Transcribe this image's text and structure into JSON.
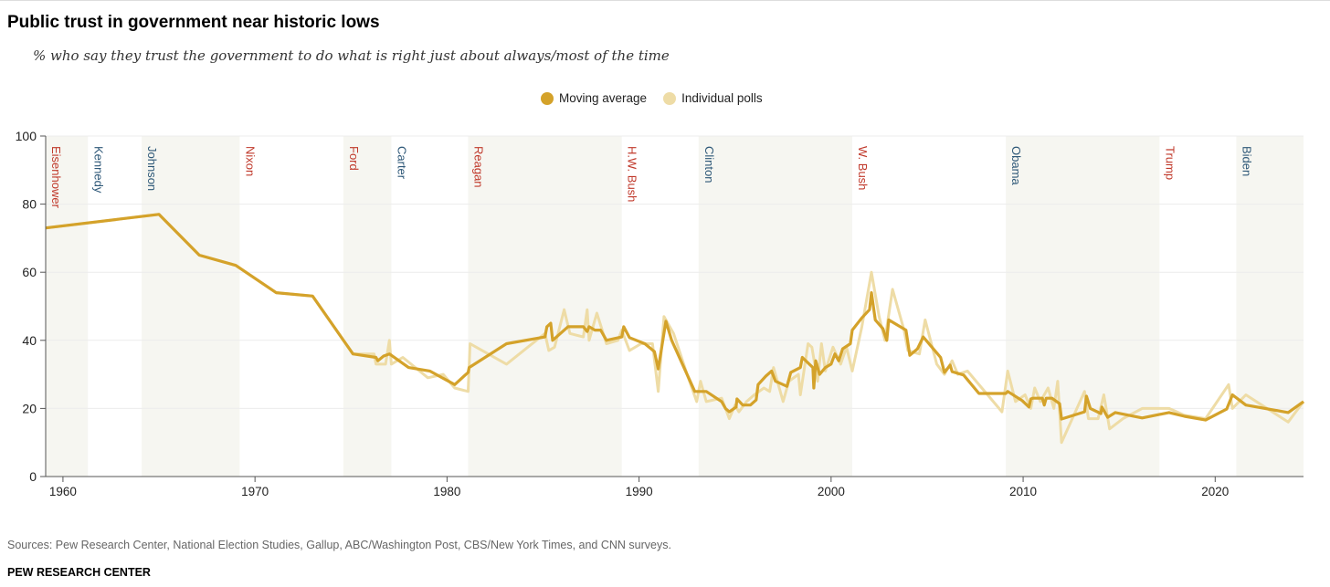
{
  "header": {
    "title": "Public trust in government near historic lows",
    "subtitle": "% who say they trust the government to do what is right just about always/most of the time"
  },
  "footer": {
    "sources": "Sources: Pew Research Center, National Election Studies, Gallup, ABC/Washington Post, CBS/New York Times, and CNN surveys.",
    "brand": "PEW RESEARCH CENTER"
  },
  "colors": {
    "average": "#D4A22A",
    "polls": "#EEDCA6",
    "band": "#F6F6F1",
    "republican": "#C0392B",
    "democrat": "#2E5878"
  },
  "chart_data": {
    "type": "line",
    "title": "Public trust in government near historic lows",
    "xlabel": "",
    "ylabel": "",
    "xlim": [
      1959.1,
      2024.6
    ],
    "ylim": [
      0,
      100
    ],
    "xticks": [
      1960,
      1970,
      1980,
      1990,
      2000,
      2010,
      2020
    ],
    "yticks": [
      0,
      20,
      40,
      60,
      80,
      100
    ],
    "grid": true,
    "legend_position": "top-center",
    "legend": [
      "Moving average",
      "Individual polls"
    ],
    "presidents": [
      {
        "name": "Eisenhower",
        "start": 1959.1,
        "party": "R"
      },
      {
        "name": "Kennedy",
        "start": 1961.3,
        "party": "D"
      },
      {
        "name": "Johnson",
        "start": 1964.1,
        "party": "D"
      },
      {
        "name": "Nixon",
        "start": 1969.2,
        "party": "R"
      },
      {
        "name": "Ford",
        "start": 1974.6,
        "party": "R"
      },
      {
        "name": "Carter",
        "start": 1977.1,
        "party": "D"
      },
      {
        "name": "Reagan",
        "start": 1981.1,
        "party": "R"
      },
      {
        "name": "H.W. Bush",
        "start": 1989.1,
        "party": "R"
      },
      {
        "name": "Clinton",
        "start": 1993.1,
        "party": "D"
      },
      {
        "name": "W. Bush",
        "start": 2001.1,
        "party": "R"
      },
      {
        "name": "Obama",
        "start": 2009.1,
        "party": "D"
      },
      {
        "name": "Trump",
        "start": 2017.1,
        "party": "R"
      },
      {
        "name": "Biden",
        "start": 2021.1,
        "party": "D"
      }
    ],
    "series": [
      {
        "name": "Individual polls",
        "points": [
          [
            1959.1,
            73
          ],
          [
            1965.0,
            77
          ],
          [
            1967.1,
            65
          ],
          [
            1969.0,
            62
          ],
          [
            1971.1,
            54
          ],
          [
            1973.0,
            53
          ],
          [
            1975.1,
            36
          ],
          [
            1976.2,
            36
          ],
          [
            1976.3,
            33
          ],
          [
            1976.8,
            33
          ],
          [
            1977.0,
            40
          ],
          [
            1977.1,
            33
          ],
          [
            1977.7,
            35
          ],
          [
            1979.0,
            29
          ],
          [
            1979.8,
            30
          ],
          [
            1980.4,
            26
          ],
          [
            1981.1,
            25
          ],
          [
            1981.2,
            39
          ],
          [
            1983.1,
            33
          ],
          [
            1985.1,
            42
          ],
          [
            1985.3,
            37
          ],
          [
            1985.6,
            38
          ],
          [
            1986.1,
            49
          ],
          [
            1986.4,
            42
          ],
          [
            1987.1,
            41
          ],
          [
            1987.3,
            49
          ],
          [
            1987.4,
            40
          ],
          [
            1987.8,
            48
          ],
          [
            1988.3,
            39
          ],
          [
            1988.9,
            40
          ],
          [
            1989.1,
            43
          ],
          [
            1989.5,
            37
          ],
          [
            1990.1,
            39
          ],
          [
            1990.7,
            39
          ],
          [
            1991.0,
            25
          ],
          [
            1991.3,
            47
          ],
          [
            1991.8,
            42
          ],
          [
            1992.5,
            30
          ],
          [
            1993.0,
            22
          ],
          [
            1993.2,
            28
          ],
          [
            1993.5,
            22
          ],
          [
            1994.3,
            23
          ],
          [
            1994.7,
            17
          ],
          [
            1995.0,
            21
          ],
          [
            1995.2,
            19
          ],
          [
            1995.6,
            22
          ],
          [
            1996.0,
            24
          ],
          [
            1996.5,
            26
          ],
          [
            1996.8,
            25
          ],
          [
            1997.0,
            32
          ],
          [
            1997.5,
            22
          ],
          [
            1997.8,
            28
          ],
          [
            1998.3,
            30
          ],
          [
            1998.4,
            24
          ],
          [
            1998.8,
            39
          ],
          [
            1999.0,
            38
          ],
          [
            1999.3,
            28
          ],
          [
            1999.5,
            39
          ],
          [
            1999.7,
            31
          ],
          [
            2000.1,
            38
          ],
          [
            2000.5,
            33
          ],
          [
            2000.8,
            38
          ],
          [
            2001.1,
            31
          ],
          [
            2001.6,
            44
          ],
          [
            2002.1,
            60
          ],
          [
            2002.5,
            47
          ],
          [
            2002.8,
            40
          ],
          [
            2003.2,
            55
          ],
          [
            2003.8,
            43
          ],
          [
            2004.0,
            37
          ],
          [
            2004.6,
            36
          ],
          [
            2004.9,
            46
          ],
          [
            2005.5,
            33
          ],
          [
            2005.9,
            30
          ],
          [
            2006.3,
            34
          ],
          [
            2006.6,
            30
          ],
          [
            2007.1,
            31
          ],
          [
            2008.9,
            19
          ],
          [
            2009.2,
            31
          ],
          [
            2009.6,
            22
          ],
          [
            2010.1,
            24
          ],
          [
            2010.4,
            20
          ],
          [
            2010.6,
            26
          ],
          [
            2010.9,
            22
          ],
          [
            2011.3,
            26
          ],
          [
            2011.6,
            20
          ],
          [
            2011.8,
            28
          ],
          [
            2012.0,
            10
          ],
          [
            2013.2,
            25
          ],
          [
            2013.4,
            17
          ],
          [
            2013.9,
            17
          ],
          [
            2014.2,
            24
          ],
          [
            2014.5,
            14
          ],
          [
            2015.2,
            17
          ],
          [
            2016.2,
            20
          ],
          [
            2017.6,
            20
          ],
          [
            2018.4,
            18
          ],
          [
            2019.5,
            17
          ],
          [
            2020.7,
            27
          ],
          [
            2020.9,
            20
          ],
          [
            2021.6,
            24
          ],
          [
            2023.8,
            16
          ],
          [
            2024.6,
            22
          ]
        ]
      },
      {
        "name": "Moving average",
        "points": [
          [
            1959.1,
            73
          ],
          [
            1965.0,
            77
          ],
          [
            1967.1,
            65
          ],
          [
            1969.0,
            62
          ],
          [
            1971.1,
            54
          ],
          [
            1973.0,
            53
          ],
          [
            1975.1,
            36
          ],
          [
            1976.3,
            35
          ],
          [
            1976.4,
            34
          ],
          [
            1976.7,
            35.4
          ],
          [
            1977.0,
            36
          ],
          [
            1978.0,
            32
          ],
          [
            1979.1,
            31
          ],
          [
            1980.4,
            27
          ],
          [
            1981.1,
            30.6
          ],
          [
            1981.15,
            32
          ],
          [
            1983.1,
            39
          ],
          [
            1985.1,
            41
          ],
          [
            1985.2,
            44
          ],
          [
            1985.4,
            45
          ],
          [
            1985.5,
            40
          ],
          [
            1986.3,
            44
          ],
          [
            1987.1,
            44
          ],
          [
            1987.3,
            42.6
          ],
          [
            1987.4,
            44
          ],
          [
            1987.7,
            43
          ],
          [
            1988.0,
            43
          ],
          [
            1988.3,
            40
          ],
          [
            1989.1,
            41
          ],
          [
            1989.2,
            44
          ],
          [
            1989.5,
            40.8
          ],
          [
            1990.3,
            39
          ],
          [
            1990.8,
            36.7
          ],
          [
            1991.0,
            31.6
          ],
          [
            1991.4,
            45.6
          ],
          [
            1991.7,
            40
          ],
          [
            1992.9,
            25
          ],
          [
            1993.5,
            25
          ],
          [
            1994.3,
            22
          ],
          [
            1994.5,
            20
          ],
          [
            1994.7,
            19
          ],
          [
            1995.05,
            20.4
          ],
          [
            1995.1,
            22.8
          ],
          [
            1995.4,
            21
          ],
          [
            1995.8,
            21
          ],
          [
            1996.1,
            22.5
          ],
          [
            1996.2,
            27
          ],
          [
            1996.6,
            29.5
          ],
          [
            1996.9,
            31
          ],
          [
            1997.1,
            28
          ],
          [
            1997.7,
            26.5
          ],
          [
            1997.9,
            30.6
          ],
          [
            1998.4,
            32
          ],
          [
            1998.5,
            35
          ],
          [
            1999.05,
            32
          ],
          [
            1999.1,
            26
          ],
          [
            1999.2,
            34
          ],
          [
            1999.4,
            30
          ],
          [
            1999.7,
            32
          ],
          [
            2000.0,
            33
          ],
          [
            2000.2,
            36
          ],
          [
            2000.4,
            34
          ],
          [
            2000.6,
            37.5
          ],
          [
            2001.0,
            39
          ],
          [
            2001.1,
            43
          ],
          [
            2001.6,
            46.6
          ],
          [
            2002.0,
            49
          ],
          [
            2002.1,
            54
          ],
          [
            2002.3,
            46
          ],
          [
            2002.7,
            43.4
          ],
          [
            2002.9,
            40
          ],
          [
            2003.0,
            46
          ],
          [
            2003.9,
            43
          ],
          [
            2004.1,
            35.6
          ],
          [
            2004.5,
            37.5
          ],
          [
            2004.8,
            41
          ],
          [
            2005.7,
            35
          ],
          [
            2005.9,
            30.6
          ],
          [
            2006.2,
            32.7
          ],
          [
            2006.3,
            30.8
          ],
          [
            2006.9,
            29.8
          ],
          [
            2007.7,
            24.4
          ],
          [
            2009.1,
            24.4
          ],
          [
            2009.2,
            25
          ],
          [
            2009.95,
            22.3
          ],
          [
            2010.3,
            20.4
          ],
          [
            2010.4,
            22.8
          ],
          [
            2010.5,
            23
          ],
          [
            2011.0,
            23
          ],
          [
            2011.1,
            21
          ],
          [
            2011.2,
            23
          ],
          [
            2011.5,
            23
          ],
          [
            2011.9,
            21.4
          ],
          [
            2012.0,
            16.9
          ],
          [
            2013.2,
            19
          ],
          [
            2013.3,
            23.6
          ],
          [
            2013.5,
            20
          ],
          [
            2014.05,
            18.5
          ],
          [
            2014.1,
            20.4
          ],
          [
            2014.4,
            17.4
          ],
          [
            2014.8,
            18.8
          ],
          [
            2016.2,
            17.2
          ],
          [
            2017.6,
            18.8
          ],
          [
            2018.4,
            17.7
          ],
          [
            2019.5,
            16.6
          ],
          [
            2020.6,
            19.8
          ],
          [
            2020.9,
            24
          ],
          [
            2021.6,
            21
          ],
          [
            2023.8,
            18.8
          ],
          [
            2024.6,
            22
          ]
        ]
      }
    ]
  }
}
